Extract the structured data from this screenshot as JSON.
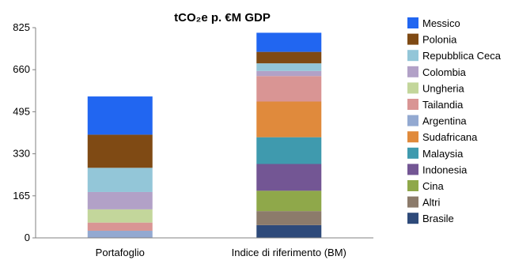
{
  "chart_data": {
    "type": "bar",
    "stacked": true,
    "title": "tCO₂e p. €M GDP",
    "categories": [
      "Portafoglio",
      "Indice di riferimento (BM)"
    ],
    "ylim": [
      0,
      825
    ],
    "yticks": [
      "0",
      "165",
      "330",
      "495",
      "660",
      "825"
    ],
    "grid": false,
    "legend_position": "right",
    "series": [
      {
        "name": "Brasile",
        "color": "#2E4A7A",
        "values": [
          0,
          50
        ]
      },
      {
        "name": "Altri",
        "color": "#8C7B6B",
        "values": [
          0,
          55
        ]
      },
      {
        "name": "Cina",
        "color": "#8FA84A",
        "values": [
          0,
          80
        ]
      },
      {
        "name": "Indonesia",
        "color": "#735694",
        "values": [
          0,
          105
        ]
      },
      {
        "name": "Malaysia",
        "color": "#3F9AAE",
        "values": [
          0,
          105
        ]
      },
      {
        "name": "Sudafricana",
        "color": "#E08A3C",
        "values": [
          0,
          140
        ]
      },
      {
        "name": "Argentina",
        "color": "#93A9D1",
        "values": [
          28,
          0
        ]
      },
      {
        "name": "Tailandia",
        "color": "#D99594",
        "values": [
          32,
          100
        ]
      },
      {
        "name": "Ungheria",
        "color": "#C3D69B",
        "values": [
          52,
          0
        ]
      },
      {
        "name": "Colombia",
        "color": "#B2A1C7",
        "values": [
          68,
          20
        ]
      },
      {
        "name": "Repubblica Ceca",
        "color": "#93C6D8",
        "values": [
          95,
          30
        ]
      },
      {
        "name": "Polonia",
        "color": "#7F4A14",
        "values": [
          130,
          45
        ]
      },
      {
        "name": "Messico",
        "color": "#2166F1",
        "values": [
          150,
          75
        ]
      }
    ]
  }
}
